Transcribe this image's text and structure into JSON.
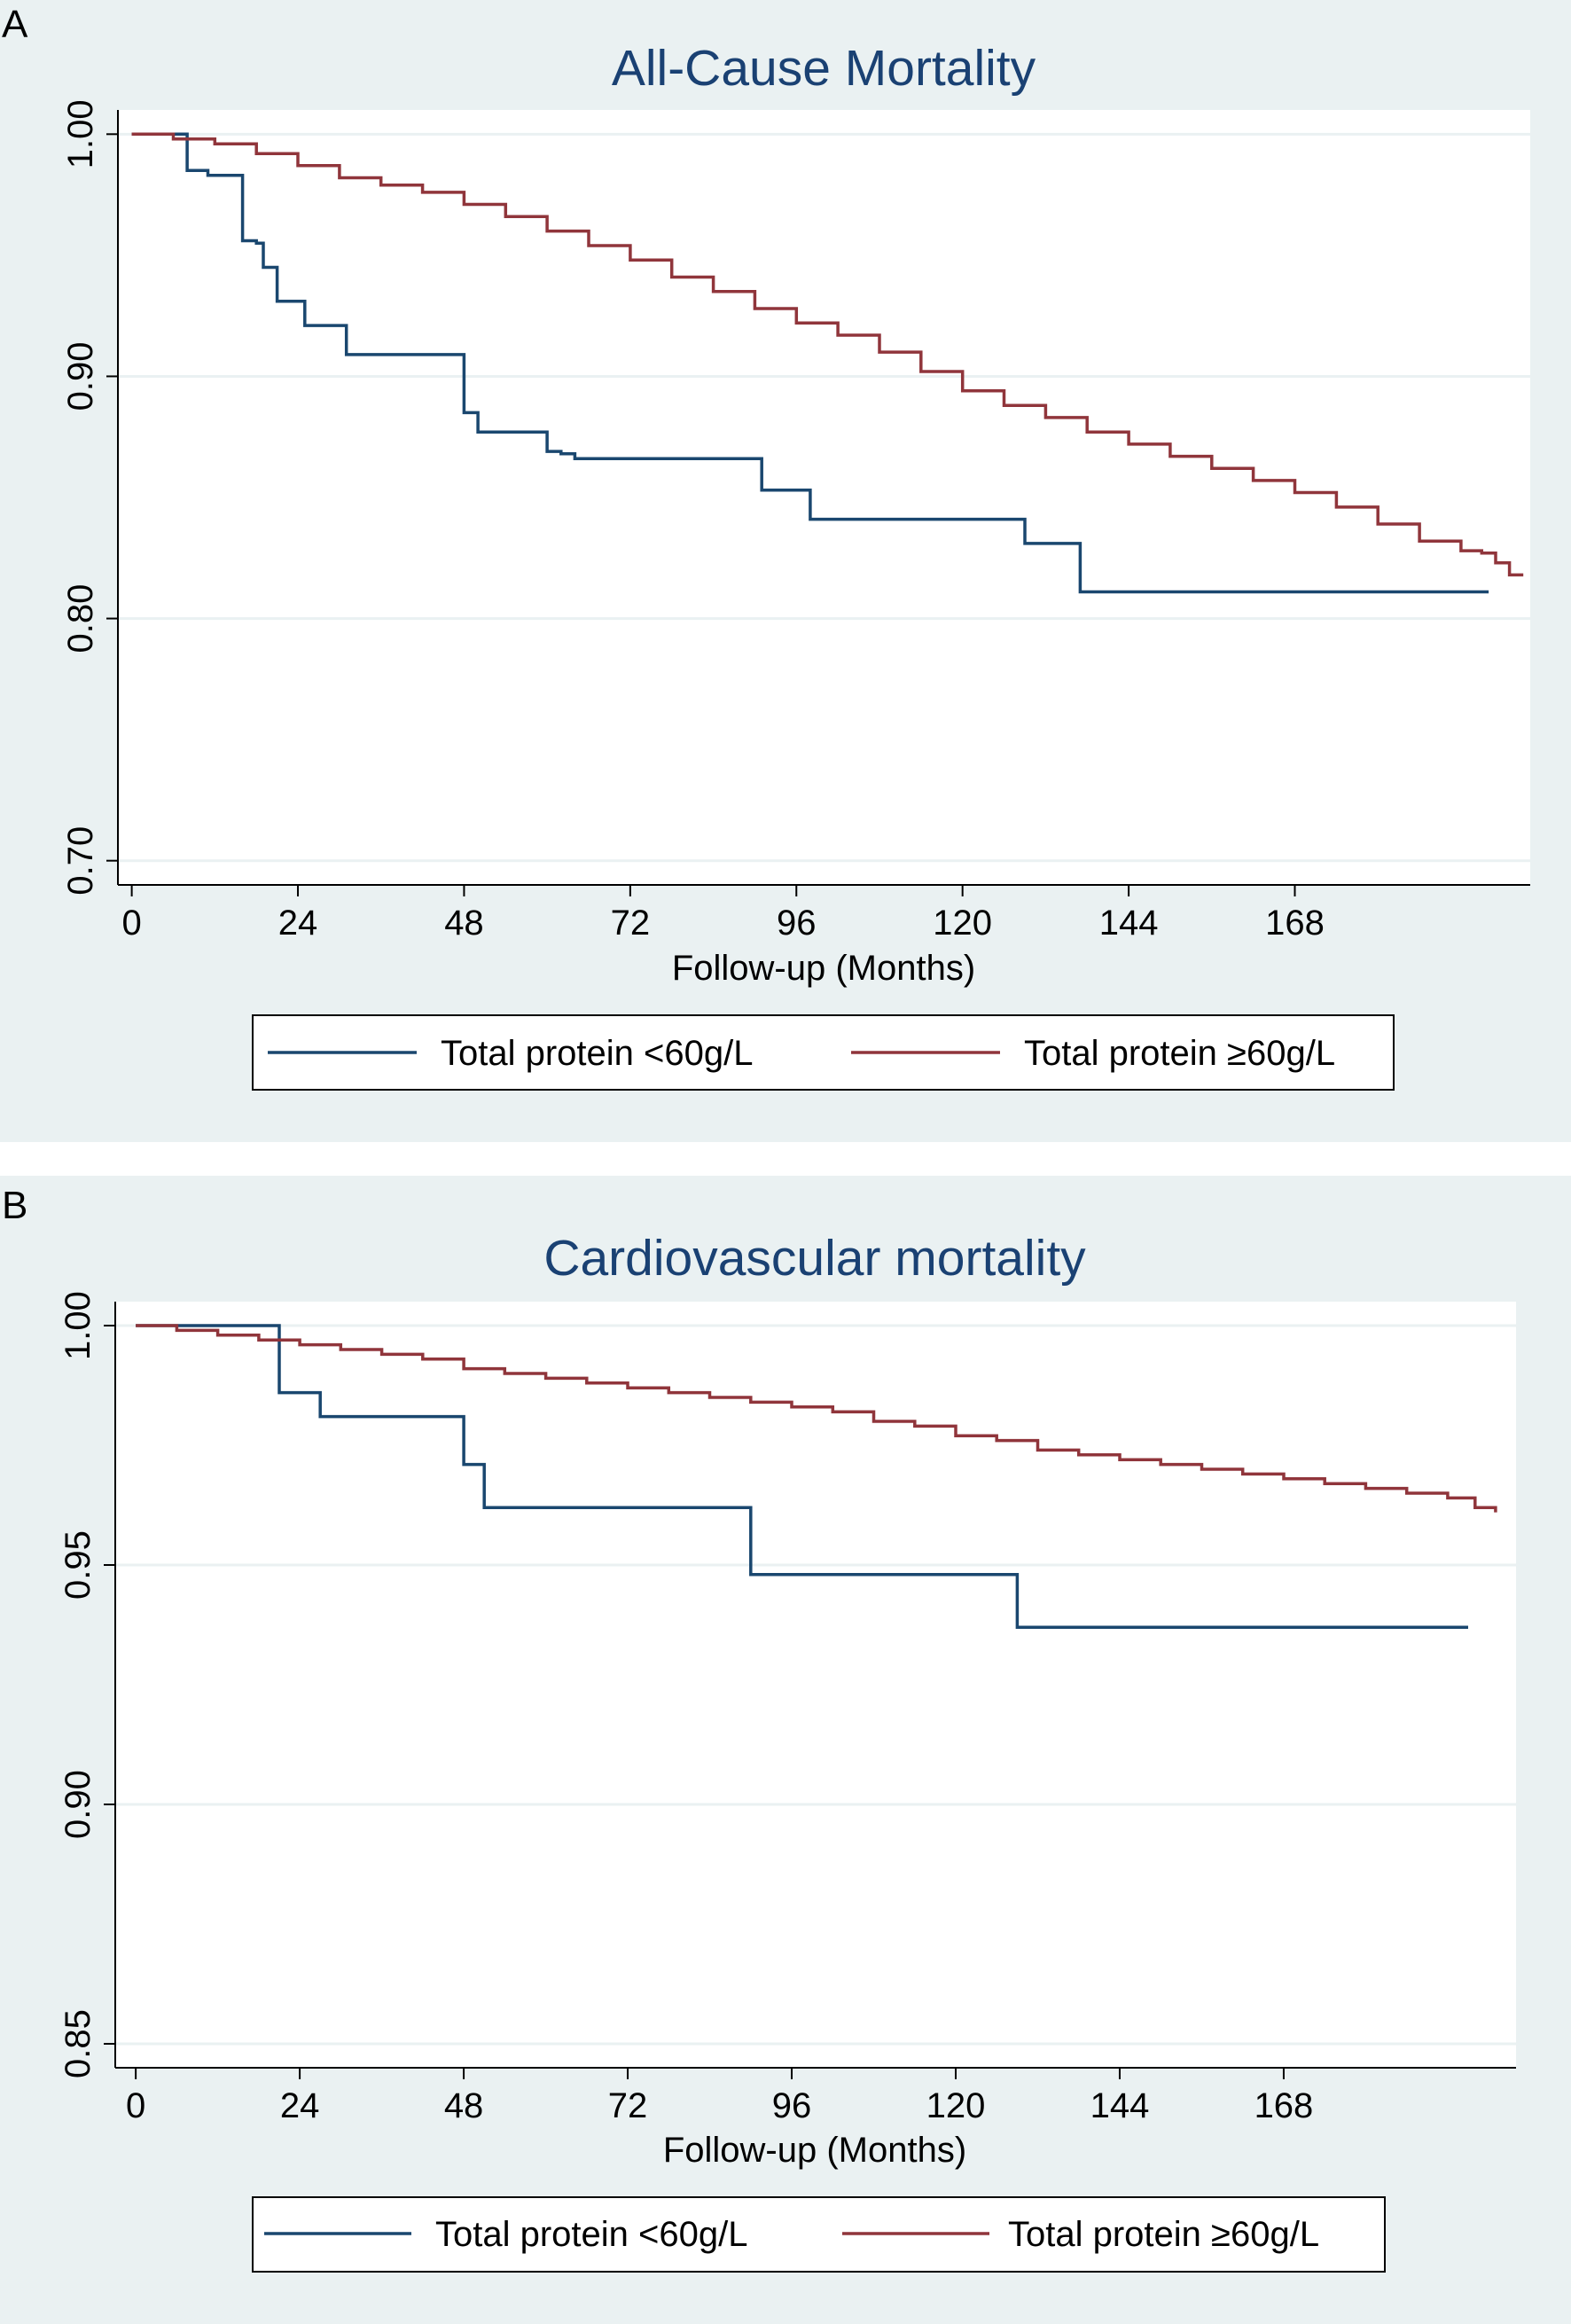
{
  "chart_data": [
    {
      "type": "line",
      "subtype": "kaplan-meier step",
      "panel_label": "A",
      "title": "All-Cause Mortality",
      "xlabel": "Follow-up (Months)",
      "ylabel": "",
      "xlim": [
        -2,
        202
      ],
      "ylim": [
        0.69,
        1.01
      ],
      "xticks": [
        0,
        24,
        48,
        72,
        96,
        120,
        144,
        168
      ],
      "yticks": [
        0.7,
        0.8,
        0.9,
        1.0
      ],
      "ytick_labels": [
        "0.70",
        "0.80",
        "0.90",
        "1.00"
      ],
      "grid": true,
      "legend_position": "bottom",
      "series": [
        {
          "name": "Total protein <60g/L",
          "color": "#1a476f",
          "x": [
            0,
            8,
            8,
            11,
            16,
            16,
            18,
            19,
            21,
            21,
            25,
            25,
            31,
            31,
            47,
            48,
            48,
            49,
            50,
            52,
            59,
            60,
            60,
            62,
            64,
            67,
            91,
            91,
            98,
            98,
            129,
            129,
            137,
            137,
            196
          ],
          "y": [
            1.0,
            1.0,
            0.985,
            0.983,
            0.983,
            0.956,
            0.955,
            0.945,
            0.945,
            0.931,
            0.931,
            0.921,
            0.921,
            0.909,
            0.909,
            0.899,
            0.885,
            0.885,
            0.877,
            0.877,
            0.877,
            0.872,
            0.869,
            0.868,
            0.866,
            0.866,
            0.866,
            0.853,
            0.853,
            0.841,
            0.841,
            0.831,
            0.831,
            0.811,
            0.811
          ]
        },
        {
          "name": "Total protein ≥60g/L",
          "color": "#90353b",
          "x": [
            0,
            6,
            12,
            18,
            24,
            30,
            36,
            42,
            48,
            54,
            60,
            66,
            72,
            78,
            84,
            90,
            96,
            102,
            108,
            114,
            120,
            126,
            132,
            138,
            144,
            150,
            156,
            162,
            168,
            174,
            180,
            186,
            192,
            195,
            197,
            199,
            201
          ],
          "y": [
            1.0,
            0.998,
            0.996,
            0.992,
            0.987,
            0.982,
            0.979,
            0.976,
            0.971,
            0.966,
            0.96,
            0.954,
            0.948,
            0.941,
            0.935,
            0.928,
            0.922,
            0.917,
            0.91,
            0.902,
            0.894,
            0.888,
            0.883,
            0.877,
            0.872,
            0.867,
            0.862,
            0.857,
            0.852,
            0.846,
            0.839,
            0.832,
            0.828,
            0.827,
            0.823,
            0.818,
            0.818
          ]
        }
      ]
    },
    {
      "type": "line",
      "subtype": "kaplan-meier step",
      "panel_label": "B",
      "title": "Cardiovascular mortality",
      "xlabel": "Follow-up (Months)",
      "ylabel": "",
      "xlim": [
        -3,
        202
      ],
      "ylim": [
        0.845,
        1.005
      ],
      "xticks": [
        0,
        24,
        48,
        72,
        96,
        120,
        144,
        168
      ],
      "yticks": [
        0.85,
        0.9,
        0.95,
        1.0
      ],
      "ytick_labels": [
        "0.85",
        "0.90",
        "0.95",
        "1.00"
      ],
      "grid": true,
      "legend_position": "bottom",
      "series": [
        {
          "name": "Total protein <60g/L",
          "color": "#1a476f",
          "x": [
            0,
            21,
            21,
            27,
            27,
            48,
            48,
            51,
            51,
            90,
            90,
            129,
            129,
            195
          ],
          "y": [
            1.0,
            1.0,
            0.986,
            0.986,
            0.981,
            0.981,
            0.971,
            0.971,
            0.962,
            0.962,
            0.948,
            0.948,
            0.937,
            0.937
          ]
        },
        {
          "name": "Total protein ≥60g/L",
          "color": "#90353b",
          "x": [
            0,
            6,
            12,
            18,
            24,
            30,
            36,
            42,
            48,
            54,
            60,
            66,
            72,
            78,
            84,
            90,
            96,
            102,
            108,
            114,
            120,
            126,
            132,
            138,
            144,
            150,
            156,
            162,
            168,
            174,
            180,
            186,
            192,
            196,
            199
          ],
          "y": [
            1.0,
            0.999,
            0.998,
            0.997,
            0.996,
            0.995,
            0.994,
            0.993,
            0.991,
            0.99,
            0.989,
            0.988,
            0.987,
            0.986,
            0.985,
            0.984,
            0.983,
            0.982,
            0.98,
            0.979,
            0.977,
            0.976,
            0.974,
            0.973,
            0.972,
            0.971,
            0.97,
            0.969,
            0.968,
            0.967,
            0.966,
            0.965,
            0.964,
            0.962,
            0.961
          ]
        }
      ]
    }
  ]
}
